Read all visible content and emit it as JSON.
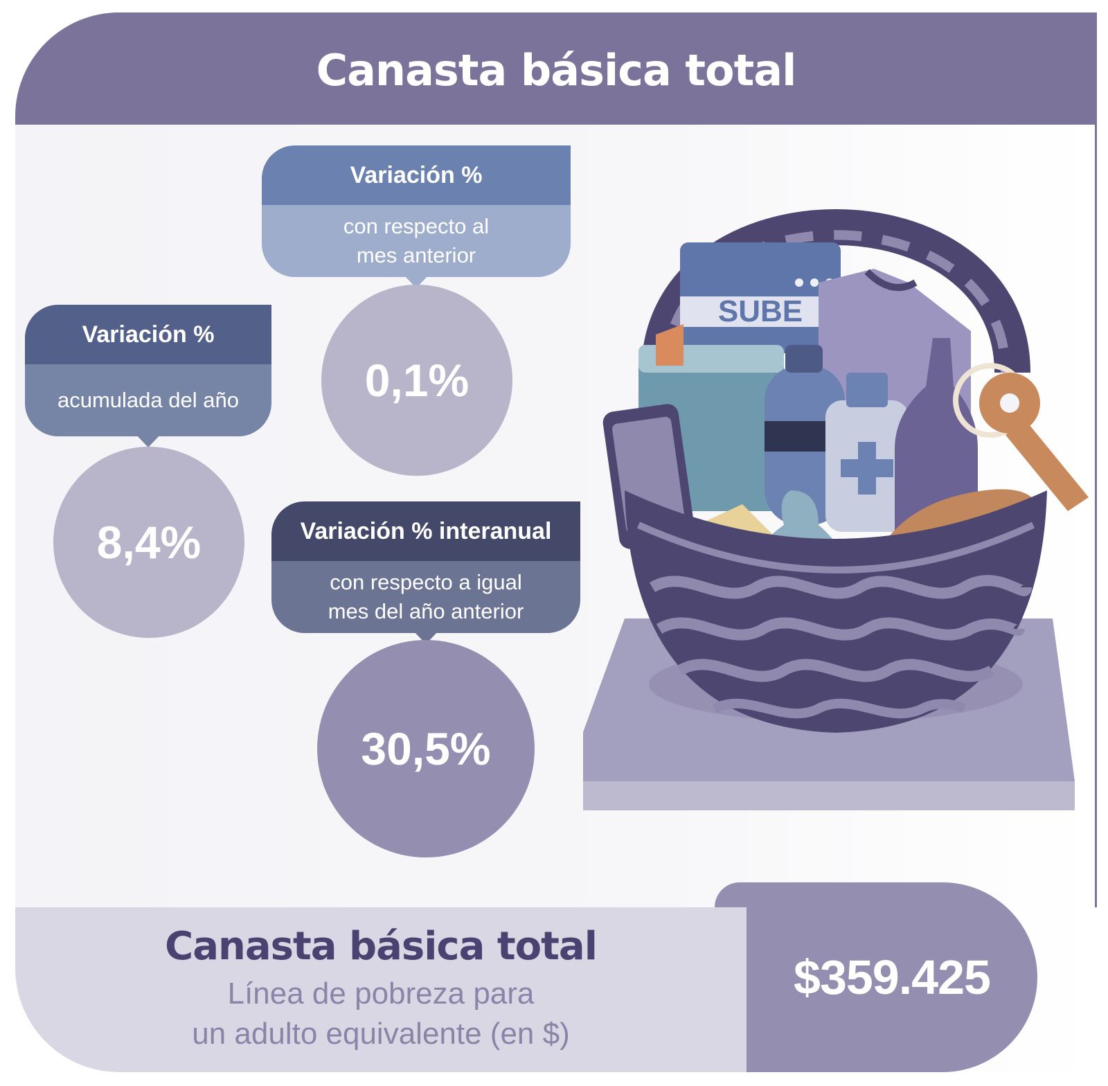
{
  "header": {
    "title": "Canasta básica total"
  },
  "cards": {
    "monthly": {
      "title": "Variación %",
      "subtitle_line1": "con respecto al",
      "subtitle_line2": "mes anterior",
      "value": "0,1%"
    },
    "accumulated": {
      "title": "Variación %",
      "subtitle_line1": "acumulada del año",
      "value": "8,4%"
    },
    "yearly": {
      "title": "Variación % interanual",
      "subtitle_line1": "con respecto a igual",
      "subtitle_line2": "mes del año anterior",
      "value": "30,5%"
    }
  },
  "illustration": {
    "card_text": "SUBE"
  },
  "footer": {
    "title": "Canasta básica total",
    "subtitle_line1": "Línea de pobreza para",
    "subtitle_line2": "un adulto equivalente (en $)",
    "amount": "$359.425"
  },
  "colors": {
    "header_bg": "#7b7399",
    "monthly_head": "#6b82b0",
    "monthly_body": "#9eadcc",
    "accum_head": "#53618a",
    "accum_body": "#7684a6",
    "yearly_head": "#44496a",
    "yearly_body": "#6c7493",
    "circle_light": "#b8b5ca",
    "circle_dark": "#948fb0",
    "footer_title": "#4a4270"
  }
}
